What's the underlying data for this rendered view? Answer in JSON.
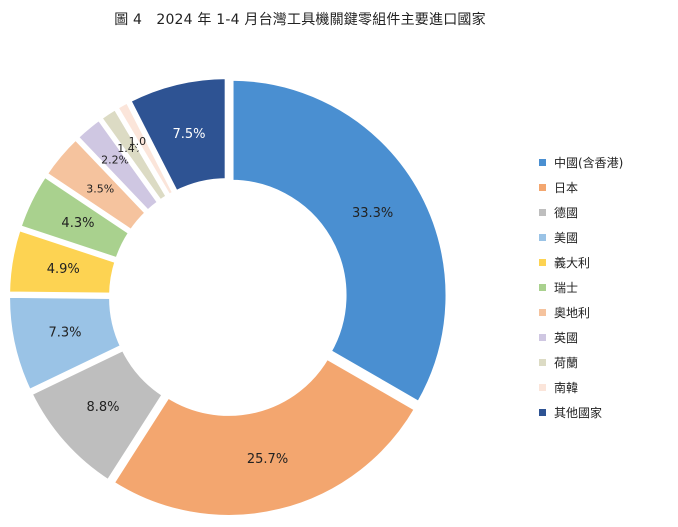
{
  "chart_data": {
    "type": "pie",
    "title": "圖 4　2024 年 1-4 月台灣工具機關鍵零組件主要進口國家",
    "categories": [
      "中國(含香港)",
      "日本",
      "德國",
      "美國",
      "義大利",
      "瑞士",
      "奧地利",
      "英國",
      "荷蘭",
      "南韓",
      "其他國家"
    ],
    "values": [
      33.3,
      25.7,
      8.8,
      7.3,
      4.9,
      4.3,
      3.5,
      2.2,
      1.4,
      1.0,
      7.5
    ],
    "labels": [
      "33.3%",
      "25.7%",
      "8.8%",
      "7.3%",
      "4.9%",
      "4.3%",
      "3.5%",
      "2.2%",
      "1.4%",
      "1.0%",
      "7.5%"
    ],
    "colors": [
      "#4a8fd1",
      "#f3a66f",
      "#bebebe",
      "#9ac3e6",
      "#fdd352",
      "#a9d18e",
      "#f5c39e",
      "#cfc7e2",
      "#dcdbc4",
      "#fbe5da",
      "#2e5393"
    ],
    "label_colors": [
      "#222222",
      "#222222",
      "#222222",
      "#222222",
      "#222222",
      "#222222",
      "#222222",
      "#222222",
      "#222222",
      "#222222",
      "#ffffff"
    ],
    "donut": true,
    "legend_position": "right"
  }
}
